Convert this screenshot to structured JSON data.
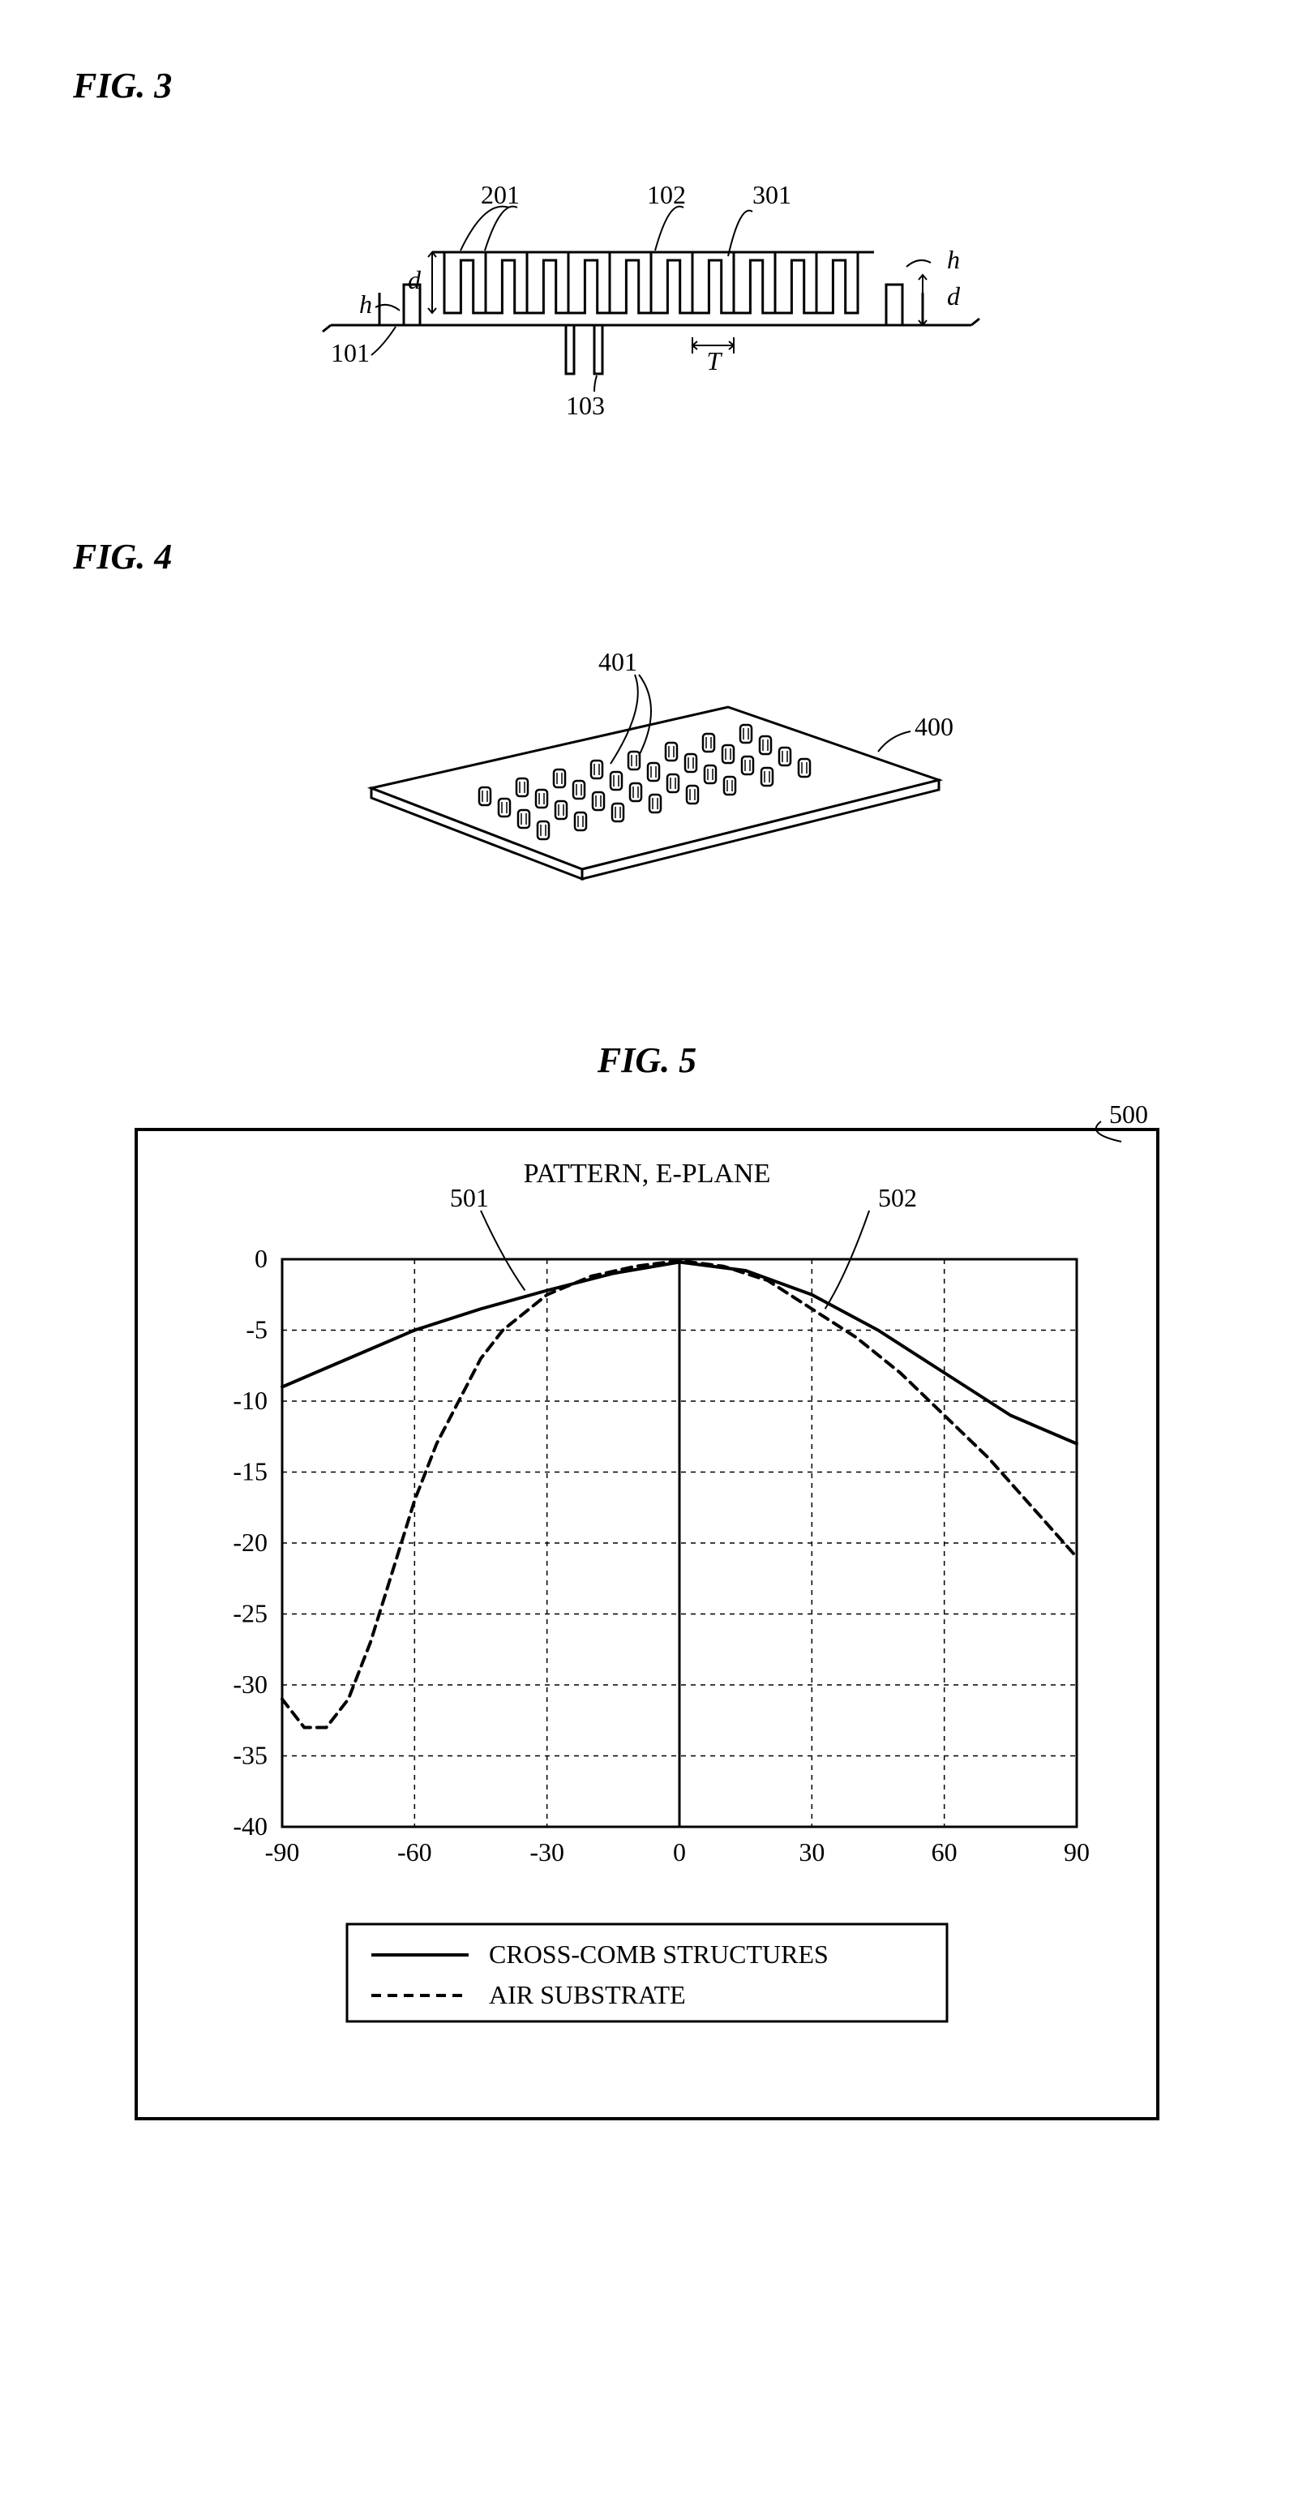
{
  "fig3": {
    "label": "FIG.  3",
    "refs": {
      "r201": "201",
      "r102": "102",
      "r301": "301",
      "r101": "101",
      "r103": "103"
    },
    "dims": {
      "d": "d",
      "h": "h",
      "T": "T"
    },
    "stroke": "#000000",
    "stroke_width": 3,
    "font_size": 32
  },
  "fig4": {
    "label": "FIG.  4",
    "refs": {
      "r401": "401",
      "r400": "400"
    },
    "stroke": "#000000",
    "stroke_width": 3,
    "font_size": 32,
    "grid_rows": 4,
    "grid_cols": 8
  },
  "fig5": {
    "label": "FIG.  5",
    "ref500": "500",
    "title": "PATTERN, E-PLANE",
    "ref501": "501",
    "ref502": "502",
    "legend": {
      "solid": "CROSS-COMB STRUCTURES",
      "dash": "AIR SUBSTRATE"
    },
    "xlim": [
      -90,
      90
    ],
    "ylim": [
      -40,
      0
    ],
    "xticks": [
      -90,
      -60,
      -30,
      0,
      30,
      60,
      90
    ],
    "yticks": [
      0,
      -5,
      -10,
      -15,
      -20,
      -25,
      -30,
      -35,
      -40
    ],
    "series_solid": {
      "color": "#000000",
      "width": 4,
      "points": [
        [
          -90,
          -9
        ],
        [
          -75,
          -7
        ],
        [
          -60,
          -5
        ],
        [
          -45,
          -3.5
        ],
        [
          -30,
          -2.2
        ],
        [
          -15,
          -1
        ],
        [
          0,
          -0.2
        ],
        [
          15,
          -0.8
        ],
        [
          30,
          -2.5
        ],
        [
          45,
          -5
        ],
        [
          60,
          -8
        ],
        [
          75,
          -11
        ],
        [
          90,
          -13
        ]
      ]
    },
    "series_dash": {
      "color": "#000000",
      "width": 4,
      "dash": "12 8",
      "points": [
        [
          -90,
          -31
        ],
        [
          -85,
          -33
        ],
        [
          -80,
          -33
        ],
        [
          -75,
          -31
        ],
        [
          -70,
          -27
        ],
        [
          -65,
          -22
        ],
        [
          -60,
          -17
        ],
        [
          -55,
          -13
        ],
        [
          -50,
          -10
        ],
        [
          -45,
          -7
        ],
        [
          -40,
          -5
        ],
        [
          -30,
          -2.5
        ],
        [
          -20,
          -1.2
        ],
        [
          -10,
          -0.5
        ],
        [
          0,
          -0.1
        ],
        [
          10,
          -0.5
        ],
        [
          20,
          -1.5
        ],
        [
          30,
          -3.5
        ],
        [
          40,
          -5.5
        ],
        [
          50,
          -8
        ],
        [
          60,
          -11
        ],
        [
          70,
          -14
        ],
        [
          80,
          -17.5
        ],
        [
          90,
          -21
        ]
      ]
    },
    "axis_stroke": "#000000",
    "grid_dash": "6 6",
    "font_size": 32,
    "title_font_size": 34
  }
}
